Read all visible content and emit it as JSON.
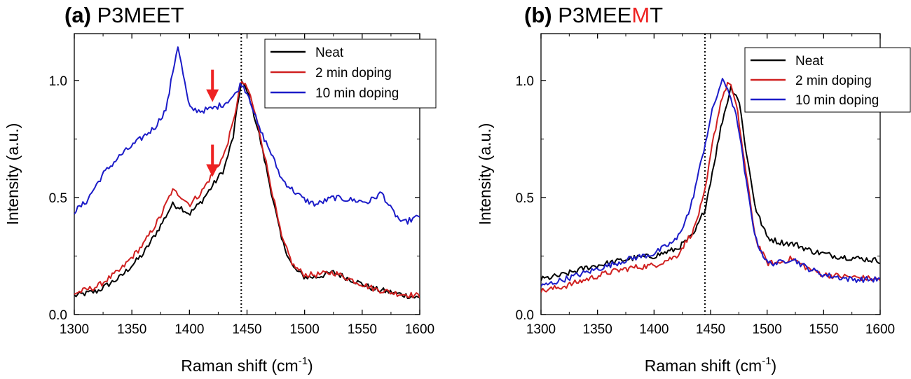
{
  "colors": {
    "neat": "#000000",
    "doping2": "#d02020",
    "doping10": "#1c1cc8",
    "highlight": "#ee2222"
  },
  "chart_data": [
    {
      "type": "line",
      "panel_label": "(a)",
      "title_main": "P3MEET",
      "title_parts": [
        {
          "text": "P3MEET",
          "highlight": false
        }
      ],
      "xlabel": "Raman shift (cm",
      "xlabel_sup": "-1",
      "xlabel_end": ")",
      "ylabel": "Intensity (a.u.)",
      "xlim": [
        1300,
        1600
      ],
      "ylim": [
        0,
        1.2
      ],
      "xticks": [
        "1300",
        "1350",
        "1400",
        "1450",
        "1500",
        "1550",
        "1600"
      ],
      "yticks": [
        "0.0",
        "0.5",
        "1.0"
      ],
      "reference_line_x": 1445,
      "legend_position": "top-right",
      "arrows": [
        {
          "x": 1420,
          "y": 0.92
        },
        {
          "x": 1420,
          "y": 0.6
        }
      ],
      "series": [
        {
          "name": "Neat",
          "color_key": "neat",
          "points": [
            [
              1300,
              0.08
            ],
            [
              1320,
              0.1
            ],
            [
              1340,
              0.16
            ],
            [
              1360,
              0.26
            ],
            [
              1375,
              0.38
            ],
            [
              1385,
              0.47
            ],
            [
              1392,
              0.46
            ],
            [
              1400,
              0.43
            ],
            [
              1410,
              0.48
            ],
            [
              1420,
              0.55
            ],
            [
              1430,
              0.62
            ],
            [
              1438,
              0.76
            ],
            [
              1445,
              1.0
            ],
            [
              1452,
              0.93
            ],
            [
              1460,
              0.78
            ],
            [
              1470,
              0.55
            ],
            [
              1480,
              0.32
            ],
            [
              1490,
              0.2
            ],
            [
              1500,
              0.16
            ],
            [
              1510,
              0.16
            ],
            [
              1525,
              0.18
            ],
            [
              1540,
              0.15
            ],
            [
              1560,
              0.11
            ],
            [
              1580,
              0.09
            ],
            [
              1600,
              0.07
            ]
          ]
        },
        {
          "name": "2 min doping",
          "color_key": "doping2",
          "points": [
            [
              1300,
              0.09
            ],
            [
              1320,
              0.12
            ],
            [
              1340,
              0.19
            ],
            [
              1360,
              0.3
            ],
            [
              1375,
              0.42
            ],
            [
              1385,
              0.53
            ],
            [
              1392,
              0.51
            ],
            [
              1400,
              0.47
            ],
            [
              1410,
              0.52
            ],
            [
              1420,
              0.6
            ],
            [
              1430,
              0.68
            ],
            [
              1438,
              0.82
            ],
            [
              1445,
              1.0
            ],
            [
              1452,
              0.95
            ],
            [
              1460,
              0.8
            ],
            [
              1470,
              0.57
            ],
            [
              1480,
              0.33
            ],
            [
              1490,
              0.21
            ],
            [
              1500,
              0.17
            ],
            [
              1510,
              0.17
            ],
            [
              1525,
              0.18
            ],
            [
              1540,
              0.15
            ],
            [
              1560,
              0.11
            ],
            [
              1580,
              0.09
            ],
            [
              1600,
              0.08
            ]
          ]
        },
        {
          "name": "10 min doping",
          "color_key": "doping10",
          "points": [
            [
              1300,
              0.44
            ],
            [
              1310,
              0.48
            ],
            [
              1325,
              0.6
            ],
            [
              1340,
              0.68
            ],
            [
              1355,
              0.74
            ],
            [
              1370,
              0.8
            ],
            [
              1380,
              0.88
            ],
            [
              1386,
              1.05
            ],
            [
              1390,
              1.15
            ],
            [
              1394,
              1.04
            ],
            [
              1400,
              0.88
            ],
            [
              1410,
              0.87
            ],
            [
              1420,
              0.88
            ],
            [
              1430,
              0.9
            ],
            [
              1440,
              0.94
            ],
            [
              1445,
              0.99
            ],
            [
              1452,
              0.93
            ],
            [
              1460,
              0.8
            ],
            [
              1470,
              0.7
            ],
            [
              1480,
              0.58
            ],
            [
              1490,
              0.53
            ],
            [
              1500,
              0.49
            ],
            [
              1510,
              0.47
            ],
            [
              1525,
              0.5
            ],
            [
              1540,
              0.49
            ],
            [
              1555,
              0.48
            ],
            [
              1567,
              0.52
            ],
            [
              1575,
              0.45
            ],
            [
              1585,
              0.39
            ],
            [
              1600,
              0.42
            ]
          ]
        }
      ]
    },
    {
      "type": "line",
      "panel_label": "(b)",
      "title_main": "P3MEEMT",
      "title_parts": [
        {
          "text": "P3MEE",
          "highlight": false
        },
        {
          "text": "M",
          "highlight": true
        },
        {
          "text": "T",
          "highlight": false
        }
      ],
      "xlabel": "Raman shift (cm",
      "xlabel_sup": "-1",
      "xlabel_end": ")",
      "ylabel": "Intensity (a.u.)",
      "xlim": [
        1300,
        1600
      ],
      "ylim": [
        0,
        1.2
      ],
      "xticks": [
        "1300",
        "1350",
        "1400",
        "1450",
        "1500",
        "1550",
        "1600"
      ],
      "yticks": [
        "0.0",
        "0.5",
        "1.0"
      ],
      "reference_line_x": 1445,
      "legend_position": "top-right",
      "arrows": [],
      "series": [
        {
          "name": "Neat",
          "color_key": "neat",
          "points": [
            [
              1300,
              0.15
            ],
            [
              1320,
              0.17
            ],
            [
              1340,
              0.2
            ],
            [
              1360,
              0.22
            ],
            [
              1380,
              0.24
            ],
            [
              1400,
              0.25
            ],
            [
              1420,
              0.28
            ],
            [
              1435,
              0.34
            ],
            [
              1445,
              0.45
            ],
            [
              1452,
              0.62
            ],
            [
              1460,
              0.82
            ],
            [
              1468,
              0.97
            ],
            [
              1475,
              0.92
            ],
            [
              1482,
              0.68
            ],
            [
              1490,
              0.45
            ],
            [
              1500,
              0.33
            ],
            [
              1510,
              0.31
            ],
            [
              1525,
              0.3
            ],
            [
              1540,
              0.27
            ],
            [
              1560,
              0.25
            ],
            [
              1580,
              0.24
            ],
            [
              1600,
              0.23
            ]
          ]
        },
        {
          "name": "2 min doping",
          "color_key": "doping2",
          "points": [
            [
              1300,
              0.1
            ],
            [
              1320,
              0.12
            ],
            [
              1340,
              0.15
            ],
            [
              1360,
              0.18
            ],
            [
              1380,
              0.2
            ],
            [
              1400,
              0.21
            ],
            [
              1420,
              0.25
            ],
            [
              1435,
              0.36
            ],
            [
              1445,
              0.52
            ],
            [
              1452,
              0.74
            ],
            [
              1460,
              0.93
            ],
            [
              1467,
              1.0
            ],
            [
              1474,
              0.86
            ],
            [
              1482,
              0.58
            ],
            [
              1490,
              0.32
            ],
            [
              1500,
              0.22
            ],
            [
              1510,
              0.22
            ],
            [
              1522,
              0.24
            ],
            [
              1535,
              0.2
            ],
            [
              1550,
              0.17
            ],
            [
              1575,
              0.16
            ],
            [
              1600,
              0.15
            ]
          ]
        },
        {
          "name": "10 min doping",
          "color_key": "doping10",
          "points": [
            [
              1300,
              0.12
            ],
            [
              1320,
              0.15
            ],
            [
              1340,
              0.18
            ],
            [
              1360,
              0.21
            ],
            [
              1380,
              0.24
            ],
            [
              1400,
              0.26
            ],
            [
              1420,
              0.32
            ],
            [
              1432,
              0.45
            ],
            [
              1442,
              0.66
            ],
            [
              1452,
              0.88
            ],
            [
              1460,
              1.0
            ],
            [
              1466,
              0.96
            ],
            [
              1474,
              0.82
            ],
            [
              1482,
              0.55
            ],
            [
              1490,
              0.32
            ],
            [
              1500,
              0.22
            ],
            [
              1510,
              0.22
            ],
            [
              1522,
              0.24
            ],
            [
              1535,
              0.2
            ],
            [
              1550,
              0.17
            ],
            [
              1575,
              0.15
            ],
            [
              1600,
              0.15
            ]
          ]
        }
      ]
    }
  ]
}
